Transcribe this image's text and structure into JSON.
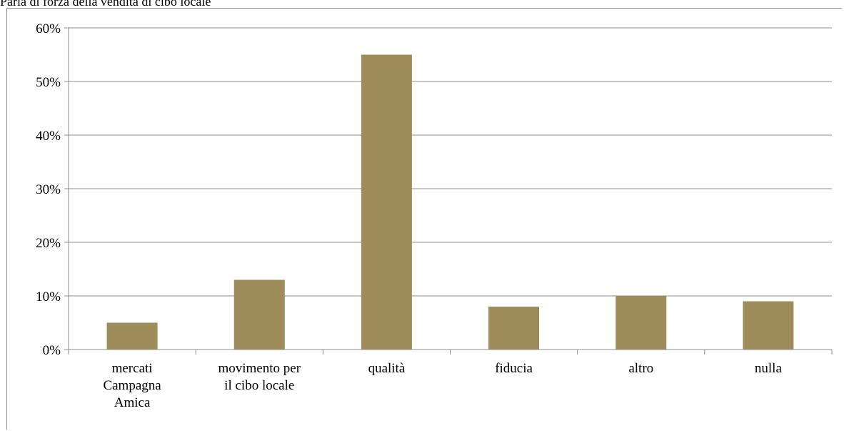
{
  "chart_data": {
    "type": "bar",
    "title": "Parla di forza della vendita di cibo locale",
    "categories": [
      [
        "mercati",
        "Campagna",
        "Amica"
      ],
      [
        "movimento per",
        "il cibo locale"
      ],
      [
        "qualità"
      ],
      [
        "fiducia"
      ],
      [
        "altro"
      ],
      [
        "nulla"
      ]
    ],
    "values": [
      5,
      13,
      55,
      8,
      10,
      9
    ],
    "y_ticks": [
      "0%",
      "10%",
      "20%",
      "30%",
      "40%",
      "50%",
      "60%"
    ],
    "ylim": [
      0,
      60
    ],
    "grid": true,
    "bar_color": "#9e8c5a",
    "grid_color": "#8c8c8c"
  }
}
